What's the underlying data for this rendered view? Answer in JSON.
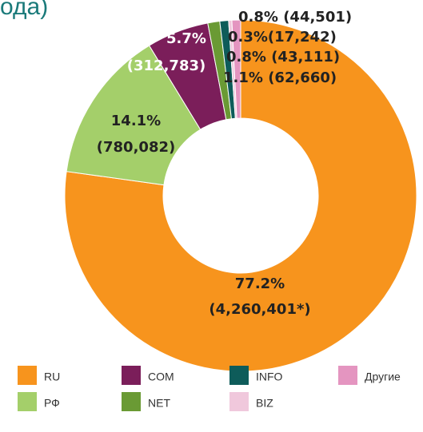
{
  "chart_data": {
    "type": "donut",
    "title": "ода)",
    "categories": [
      "RU",
      "РФ",
      "COM",
      "NET",
      "INFO",
      "BIZ",
      "Другие"
    ],
    "values": [
      77.2,
      14.1,
      5.7,
      1.1,
      0.8,
      0.3,
      0.8
    ],
    "counts": [
      4260401,
      780082,
      312783,
      62660,
      43111,
      17242,
      44501
    ],
    "value_labels": [
      [
        "77.2%",
        "(4,260,401*)"
      ],
      [
        "14.1%",
        "(780,082)"
      ],
      [
        "5.7%",
        "(312,783)"
      ],
      [
        "1.1% (62,660)"
      ],
      [
        "0.8% (43,111)"
      ],
      [
        "0.3%(17,242)"
      ],
      [
        "0.8% (44,501)"
      ]
    ],
    "colors": [
      "#f7941d",
      "#a4cf6a",
      "#7b1e5a",
      "#6a9a34",
      "#0e5c5a",
      "#f0c8dc",
      "#e495c0"
    ],
    "legend": "bottom"
  }
}
